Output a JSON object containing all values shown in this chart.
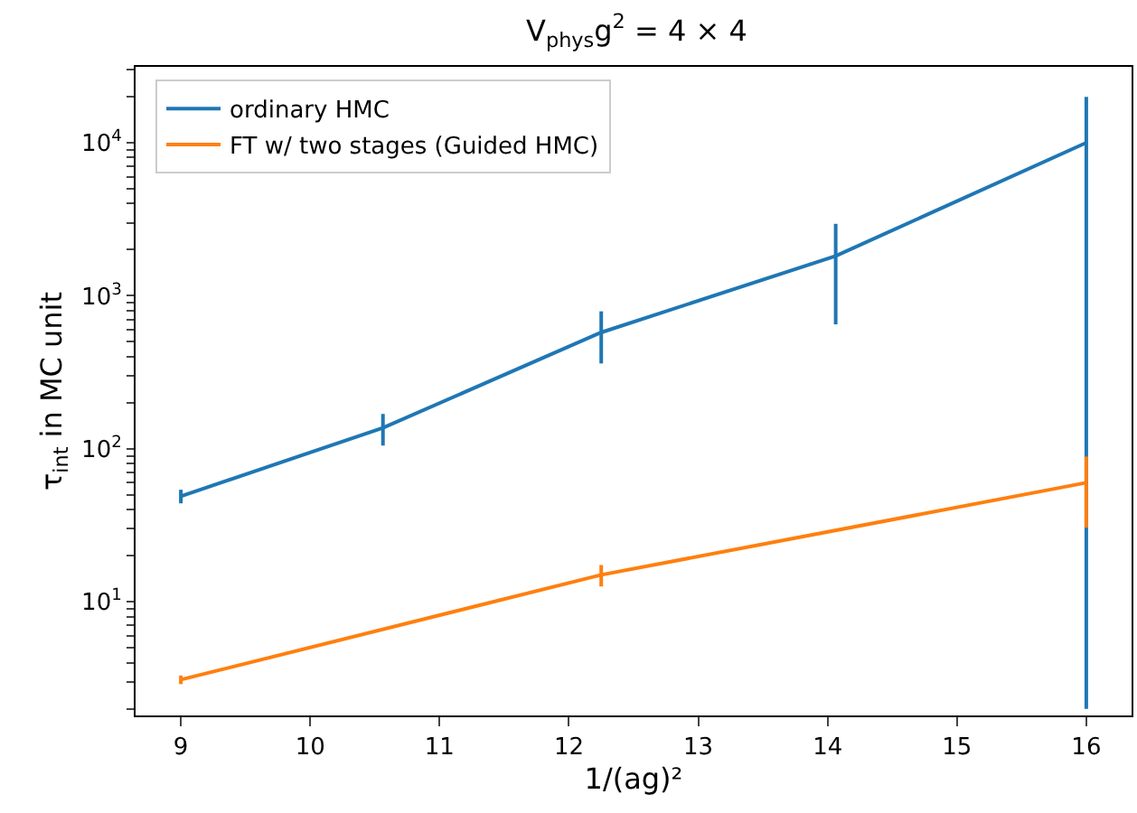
{
  "chart_data": {
    "type": "line",
    "title": "V$_{phys}$g$^{2}$ = 4 × 4",
    "xlabel": "1/(ag)²",
    "ylabel": "τ$_{int}$ in MC unit",
    "log": "y",
    "legend": "top left",
    "marker": "none",
    "line_style": "solid",
    "xlim": [
      8.65,
      16.35
    ],
    "xticks": [
      9,
      10,
      11,
      12,
      13,
      14,
      15,
      16
    ],
    "ylim": [
      1.81,
      31300
    ],
    "yticks": [
      {
        "value": 2,
        "label": null
      },
      {
        "value": 3,
        "label": null
      },
      {
        "value": 4,
        "label": null
      },
      {
        "value": 5,
        "label": null
      },
      {
        "value": 6,
        "label": null
      },
      {
        "value": 7,
        "label": null
      },
      {
        "value": 8,
        "label": null
      },
      {
        "value": 9,
        "label": null
      },
      {
        "value": 10,
        "label": "10$^{1}$"
      },
      {
        "value": 20,
        "label": null
      },
      {
        "value": 30,
        "label": null
      },
      {
        "value": 40,
        "label": null
      },
      {
        "value": 50,
        "label": null
      },
      {
        "value": 60,
        "label": null
      },
      {
        "value": 70,
        "label": null
      },
      {
        "value": 80,
        "label": null
      },
      {
        "value": 90,
        "label": null
      },
      {
        "value": 100,
        "label": "10$^{2}$"
      },
      {
        "value": 200,
        "label": null
      },
      {
        "value": 300,
        "label": null
      },
      {
        "value": 400,
        "label": null
      },
      {
        "value": 500,
        "label": null
      },
      {
        "value": 600,
        "label": null
      },
      {
        "value": 700,
        "label": null
      },
      {
        "value": 800,
        "label": null
      },
      {
        "value": 900,
        "label": null
      },
      {
        "value": 1000,
        "label": "10$^{3}$"
      },
      {
        "value": 2000,
        "label": null
      },
      {
        "value": 3000,
        "label": null
      },
      {
        "value": 4000,
        "label": null
      },
      {
        "value": 5000,
        "label": null
      },
      {
        "value": 6000,
        "label": null
      },
      {
        "value": 7000,
        "label": null
      },
      {
        "value": 8000,
        "label": null
      },
      {
        "value": 9000,
        "label": null
      },
      {
        "value": 10000,
        "label": "10$^{4}$"
      },
      {
        "value": 20000,
        "label": null
      },
      {
        "value": 30000,
        "label": null
      }
    ],
    "series": [
      {
        "name": "ordinary HMC",
        "color": "#1f77b4",
        "x": [
          9,
          10.5625,
          12.25,
          14.0625,
          16
        ],
        "values": [
          49,
          137,
          576,
          1820,
          10000
        ],
        "errors": [
          5,
          32,
          215,
          [
            1170,
            1130
          ],
          [
            9998,
            9900
          ]
        ]
      },
      {
        "name": "FT w/ two stages (Guided HMC)",
        "color": "#ff7f0e",
        "x": [
          9,
          12.25,
          16
        ],
        "values": [
          3.1,
          15,
          60
        ],
        "errors": [
          0.2,
          2.4,
          [
            29.5,
            29
          ]
        ]
      }
    ]
  }
}
